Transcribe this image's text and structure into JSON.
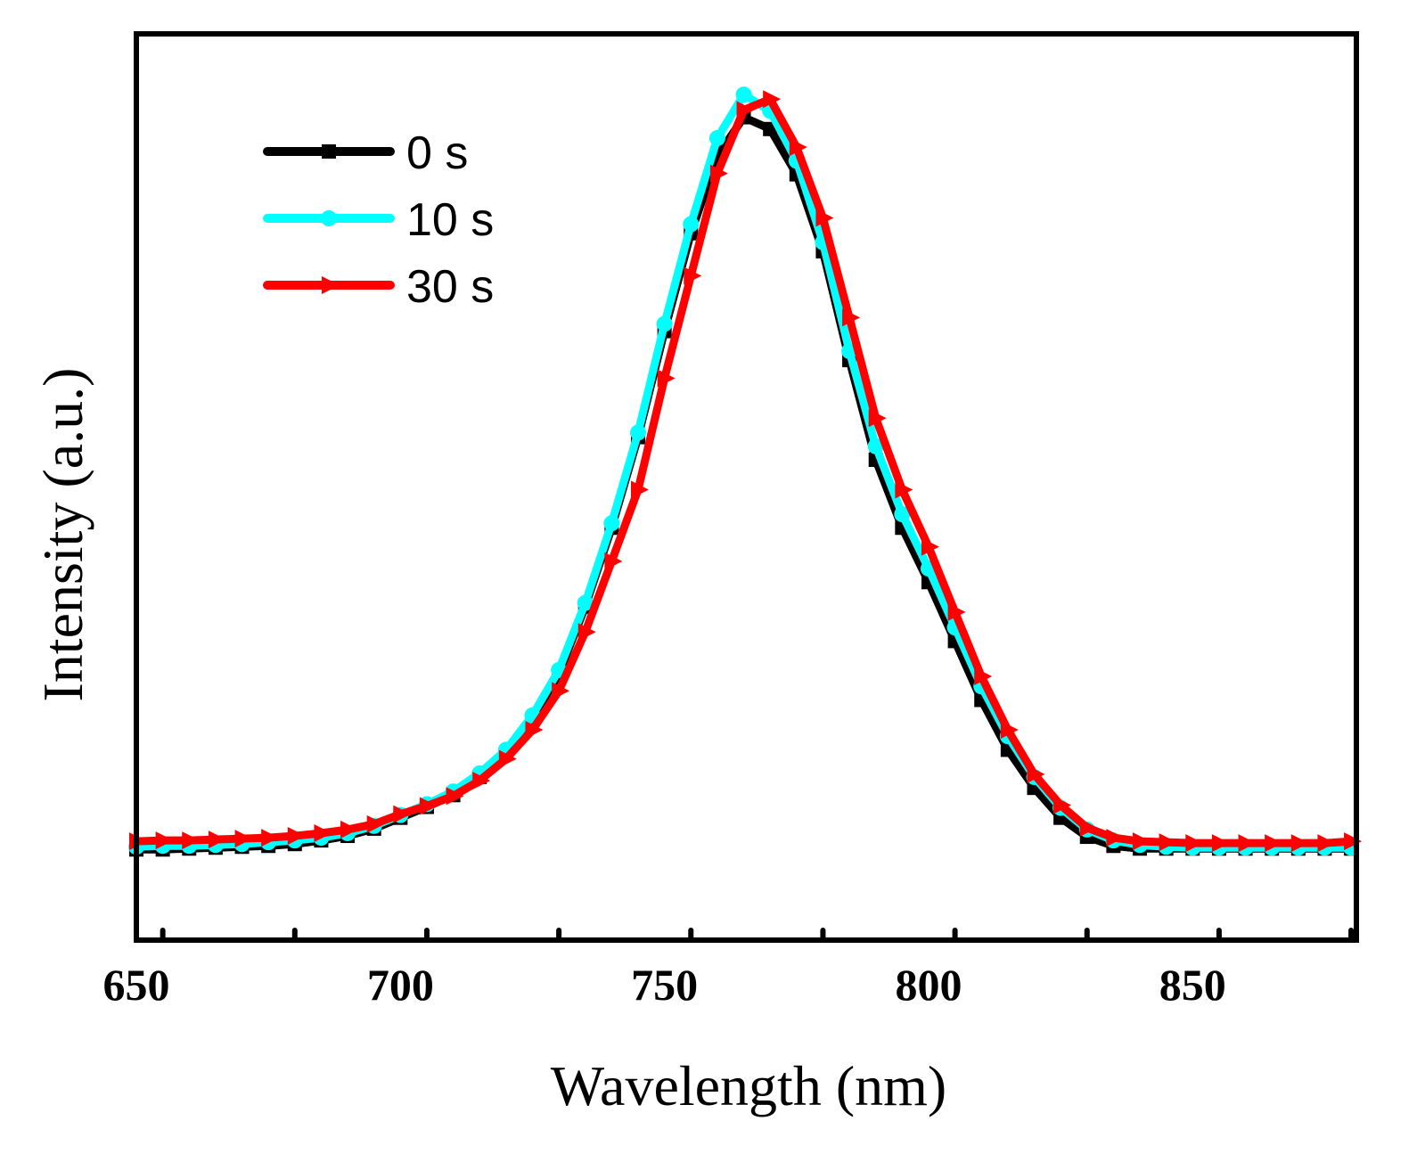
{
  "chart_data": {
    "type": "line",
    "title": "",
    "xlabel": "Wavelength (nm)",
    "ylabel": "Intensity (a.u.)",
    "xlim": [
      650,
      881
    ],
    "ylim": [
      0,
      1000
    ],
    "xticks": [
      650,
      700,
      750,
      800,
      850
    ],
    "xtick_labels": [
      "650",
      "700",
      "750",
      "800",
      "850"
    ],
    "grid": false,
    "legend_position": "top-left",
    "x": [
      650,
      655,
      660,
      665,
      670,
      675,
      680,
      685,
      690,
      695,
      700,
      705,
      710,
      715,
      720,
      725,
      730,
      735,
      740,
      745,
      750,
      755,
      760,
      765,
      770,
      775,
      780,
      785,
      790,
      795,
      800,
      805,
      810,
      815,
      820,
      825,
      830,
      835,
      840,
      845,
      850,
      855,
      860,
      865,
      870,
      875,
      880
    ],
    "series": [
      {
        "name": "0 s",
        "color": "#000000",
        "marker": "square",
        "values": [
          100,
          100,
          101,
          102,
          103,
          104,
          106,
          110,
          115,
          123,
          135,
          147,
          160,
          180,
          206,
          244,
          294,
          368,
          455,
          555,
          672,
          780,
          865,
          908,
          895,
          845,
          760,
          640,
          530,
          455,
          395,
          330,
          265,
          210,
          168,
          135,
          114,
          104,
          101,
          101,
          101,
          101,
          101,
          101,
          101,
          101,
          101
        ]
      },
      {
        "name": "10 s",
        "color": "#00FFFF",
        "marker": "circle",
        "values": [
          103,
          104,
          104,
          105,
          106,
          108,
          110,
          113,
          118,
          126,
          138,
          150,
          164,
          184,
          210,
          248,
          298,
          372,
          460,
          560,
          680,
          790,
          885,
          933,
          915,
          860,
          770,
          650,
          545,
          470,
          410,
          345,
          280,
          225,
          180,
          146,
          122,
          110,
          105,
          103,
          102,
          102,
          102,
          102,
          102,
          102,
          102
        ]
      },
      {
        "name": "30 s",
        "color": "#FF0000",
        "marker": "triangle-right",
        "values": [
          109,
          110,
          110,
          111,
          112,
          113,
          115,
          118,
          122,
          128,
          139,
          148,
          159,
          176,
          200,
          232,
          275,
          340,
          418,
          497,
          620,
          733,
          846,
          916,
          928,
          875,
          797,
          687,
          576,
          497,
          434,
          362,
          291,
          232,
          183,
          149,
          124,
          113,
          109,
          108,
          107,
          107,
          107,
          107,
          107,
          107,
          109
        ]
      }
    ]
  }
}
